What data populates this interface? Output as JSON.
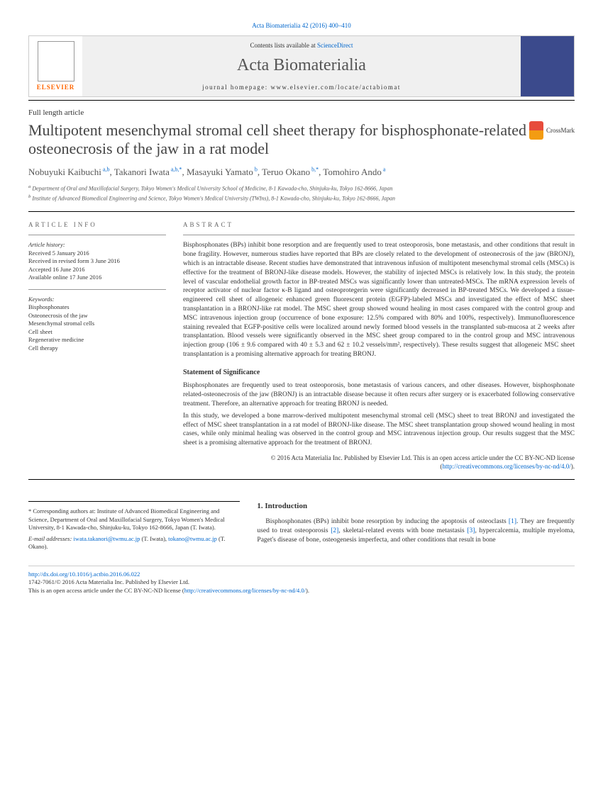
{
  "citation": "Acta Biomaterialia 42 (2016) 400–410",
  "banner": {
    "contentsLine": "Contents lists available at ",
    "contentsLink": "ScienceDirect",
    "journalName": "Acta Biomaterialia",
    "homepageLabel": "journal homepage: www.elsevier.com/locate/actabiomat",
    "publisherLabel": "ELSEVIER"
  },
  "articleType": "Full length article",
  "title": "Multipotent mesenchymal stromal cell sheet therapy for bisphosphonate-related osteonecrosis of the jaw in a rat model",
  "crossmark": "CrossMark",
  "authors": [
    {
      "name": "Nobuyuki Kaibuchi",
      "sup": "a,b"
    },
    {
      "name": "Takanori Iwata",
      "sup": "a,b,*"
    },
    {
      "name": "Masayuki Yamato",
      "sup": "b"
    },
    {
      "name": "Teruo Okano",
      "sup": "b,*"
    },
    {
      "name": "Tomohiro Ando",
      "sup": "a"
    }
  ],
  "affiliations": {
    "a": "Department of Oral and Maxillofacial Surgery, Tokyo Women's Medical University School of Medicine, 8-1 Kawada-cho, Shinjuku-ku, Tokyo 162-8666, Japan",
    "b": "Institute of Advanced Biomedical Engineering and Science, Tokyo Women's Medical University (TWIns), 8-1 Kawada-cho, Shinjuku-ku, Tokyo 162-8666, Japan"
  },
  "articleInfo": {
    "heading": "ARTICLE INFO",
    "historyLabel": "Article history:",
    "history": [
      "Received 5 January 2016",
      "Received in revised form 3 June 2016",
      "Accepted 16 June 2016",
      "Available online 17 June 2016"
    ],
    "keywordsLabel": "Keywords:",
    "keywords": [
      "Bisphosphonates",
      "Osteonecrosis of the jaw",
      "Mesenchymal stromal cells",
      "Cell sheet",
      "Regenerative medicine",
      "Cell therapy"
    ]
  },
  "abstract": {
    "heading": "ABSTRACT",
    "text": "Bisphosphonates (BPs) inhibit bone resorption and are frequently used to treat osteoporosis, bone metastasis, and other conditions that result in bone fragility. However, numerous studies have reported that BPs are closely related to the development of osteonecrosis of the jaw (BRONJ), which is an intractable disease. Recent studies have demonstrated that intravenous infusion of multipotent mesenchymal stromal cells (MSCs) is effective for the treatment of BRONJ-like disease models. However, the stability of injected MSCs is relatively low. In this study, the protein level of vascular endothelial growth factor in BP-treated MSCs was significantly lower than untreated-MSCs. The mRNA expression levels of receptor activator of nuclear factor κ-B ligand and osteoprotegerin were significantly decreased in BP-treated MSCs. We developed a tissue-engineered cell sheet of allogeneic enhanced green fluorescent protein (EGFP)-labeled MSCs and investigated the effect of MSC sheet transplantation in a BRONJ-like rat model. The MSC sheet group showed wound healing in most cases compared with the control group and MSC intravenous injection group (occurrence of bone exposure: 12.5% compared with 80% and 100%, respectively). Immunofluorescence staining revealed that EGFP-positive cells were localized around newly formed blood vessels in the transplanted sub-mucosa at 2 weeks after transplantation. Blood vessels were significantly observed in the MSC sheet group compared to in the control group and MSC intravenous injection group (106 ± 9.6 compared with 40 ± 5.3 and 62 ± 10.2 vessels/mm², respectively). These results suggest that allogeneic MSC sheet transplantation is a promising alternative approach for treating BRONJ.",
    "significanceHeading": "Statement of Significance",
    "significanceText": "Bisphosphonates are frequently used to treat osteoporosis, bone metastasis of various cancers, and other diseases. However, bisphosphonate related-osteonecrosis of the jaw (BRONJ) is an intractable disease because it often recurs after surgery or is exacerbated following conservative treatment. Therefore, an alternative approach for treating BRONJ is needed.\nIn this study, we developed a bone marrow-derived multipotent mesenchymal stromal cell (MSC) sheet to treat BRONJ and investigated the effect of MSC sheet transplantation in a rat model of BRONJ-like disease. The MSC sheet transplantation group showed wound healing in most cases, while only minimal healing was observed in the control group and MSC intravenous injection group. Our results suggest that the MSC sheet is a promising alternative approach for the treatment of BRONJ.",
    "copyright": "© 2016 Acta Materialia Inc. Published by Elsevier Ltd. This is an open access article under the CC BY-NC-ND license (",
    "licenseLink": "http://creativecommons.org/licenses/by-nc-nd/4.0/",
    "copyrightEnd": ")."
  },
  "intro": {
    "heading": "1. Introduction",
    "text": "Bisphosphonates (BPs) inhibit bone resorption by inducing the apoptosis of osteoclasts [1]. They are frequently used to treat osteoporosis [2], skeletal-related events with bone metastasis [3], hypercalcemia, multiple myeloma, Paget's disease of bone, osteogenesis imperfecta, and other conditions that result in bone"
  },
  "corresponding": {
    "text": "* Corresponding authors at: Institute of Advanced Biomedical Engineering and Science, Department of Oral and Maxillofacial Surgery, Tokyo Women's Medical University, 8-1 Kawada-cho, Shinjuku-ku, Tokyo 162-8666, Japan (T. Iwata).",
    "emailLabel": "E-mail addresses: ",
    "email1": "iwata.takanori@twmu.ac.jp",
    "email1Name": " (T. Iwata), ",
    "email2": "tokano@twmu.ac.jp",
    "email2Name": " (T. Okano)."
  },
  "footer": {
    "doi": "http://dx.doi.org/10.1016/j.actbio.2016.06.022",
    "issn": "1742-7061/© 2016 Acta Materialia Inc. Published by Elsevier Ltd.",
    "license": "This is an open access article under the CC BY-NC-ND license (",
    "licenseLink": "http://creativecommons.org/licenses/by-nc-nd/4.0/",
    "licenseEnd": ")."
  }
}
